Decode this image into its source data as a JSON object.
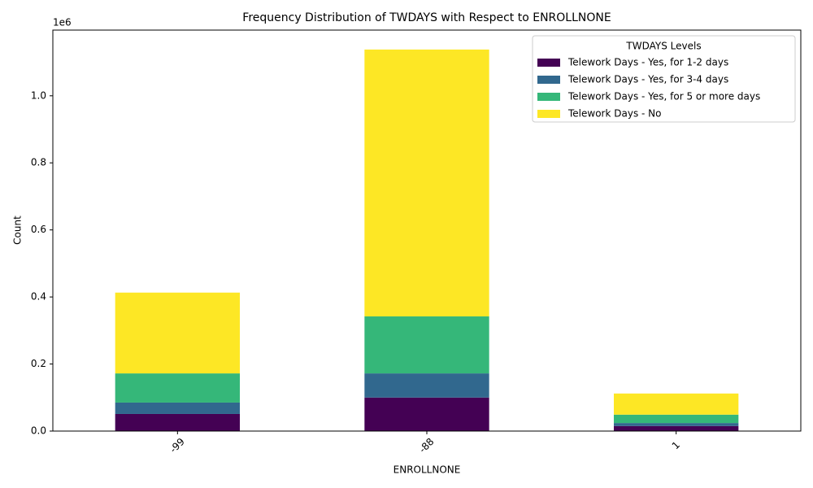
{
  "chart_data": {
    "type": "stacked_bar",
    "title": "Frequency Distribution of TWDAYS with Respect to ENROLLNONE",
    "x_label": "ENROLLNONE",
    "y_label": "Count",
    "y_offset_label": "1e6",
    "legend_title": "TWDAYS Levels",
    "legend_position": "upper right",
    "categories": [
      "-99",
      "-88",
      "1"
    ],
    "series": [
      {
        "name": "Telework Days - Yes, for 1-2 days",
        "color": "#440154",
        "values": [
          0.051,
          0.1,
          0.015
        ]
      },
      {
        "name": "Telework Days - Yes, for 3-4 days",
        "color": "#31688e",
        "values": [
          0.034,
          0.072,
          0.009
        ]
      },
      {
        "name": "Telework Days - Yes, for 5 or more days",
        "color": "#35b779",
        "values": [
          0.087,
          0.17,
          0.025
        ]
      },
      {
        "name": "Telework Days - No",
        "color": "#fde725",
        "values": [
          0.241,
          0.796,
          0.063
        ]
      }
    ],
    "ylim": [
      0,
      1.196
    ],
    "yticks": [
      {
        "value": 0,
        "label": "0.0"
      },
      0.2,
      0.4,
      0.6,
      0.8,
      {
        "value": 1,
        "label": "1.0"
      }
    ],
    "grid": false
  }
}
